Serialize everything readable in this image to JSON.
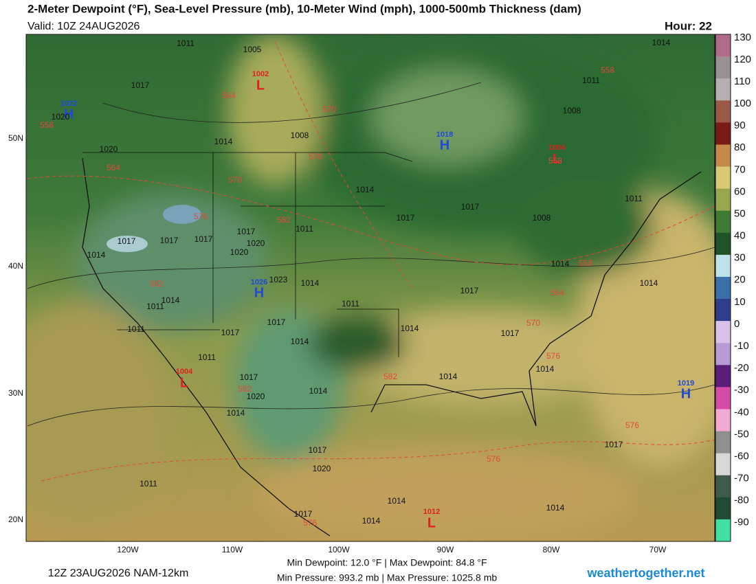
{
  "header": {
    "title": "2-Meter Dewpoint (°F), Sea-Level Pressure (mb), 10-Meter Wind (mph), 1000-500mb Thickness (dam)",
    "valid": "Valid: 10Z 24AUG2026",
    "hour": "Hour: 22"
  },
  "map": {
    "lat_labels": [
      "50N",
      "40N",
      "30N",
      "20N"
    ],
    "lon_labels": [
      "120W",
      "110W",
      "100W",
      "90W",
      "80W",
      "70W"
    ],
    "highs": [
      {
        "label": "H",
        "pressure": "1022"
      },
      {
        "label": "H",
        "pressure": "1018"
      },
      {
        "label": "H",
        "pressure": "1026"
      },
      {
        "label": "H",
        "pressure": "1019"
      }
    ],
    "lows": [
      {
        "label": "L",
        "pressure": "1002"
      },
      {
        "label": "L",
        "pressure": "1004"
      },
      {
        "label": "L",
        "pressure": "1004"
      },
      {
        "label": "L",
        "pressure": "1012"
      }
    ],
    "isobar_labels": [
      "1011",
      "1005",
      "1017",
      "1020",
      "1014",
      "1008",
      "1020",
      "1011",
      "1008",
      "1014",
      "1014",
      "1017",
      "1017",
      "1008",
      "1011",
      "1011",
      "1017",
      "1020",
      "1017",
      "1017",
      "1017",
      "1014",
      "1020",
      "1023",
      "1014",
      "1014",
      "1011",
      "1011",
      "1017",
      "1014",
      "1014",
      "1011",
      "1017",
      "1017",
      "1014",
      "1014",
      "1017",
      "1011",
      "1017",
      "1020",
      "1014",
      "1014",
      "1014",
      "1014",
      "1017",
      "1020",
      "1017",
      "1011",
      "1014",
      "1014",
      "1017",
      "1014"
    ],
    "thickness_labels": [
      "558",
      "564",
      "570",
      "558",
      "564",
      "576",
      "570",
      "576",
      "582",
      "558",
      "558",
      "564",
      "582",
      "570",
      "576",
      "582",
      "582",
      "576",
      "576",
      "576"
    ]
  },
  "colorbar": {
    "ticks": [
      130,
      120,
      110,
      100,
      90,
      80,
      70,
      60,
      50,
      40,
      30,
      20,
      10,
      0,
      -10,
      -20,
      -30,
      -40,
      -50,
      -60,
      -70,
      -80,
      -90
    ],
    "colors": [
      "#b06a8c",
      "#9a8f95",
      "#b8aeb2",
      "#9b5a48",
      "#7a1a14",
      "#c58a4a",
      "#d9c874",
      "#9aa64e",
      "#3f7a34",
      "#1f5428",
      "#bfe1ea",
      "#3b6fa8",
      "#2d3f8a",
      "#d9c2ea",
      "#b79ad6",
      "#5a1e7a",
      "#d64aa8",
      "#f2a9d2",
      "#8f8f8f",
      "#d8d8d8",
      "#3d5a4a",
      "#1f4a34",
      "#3fe0a0"
    ]
  },
  "footer": {
    "run": "12Z 23AUG2026 NAM-12km",
    "dewpoint": "Min Dewpoint:  12.0 °F | Max Dewpoint:  84.8 °F",
    "pressure": "Min Pressure: 993.2 mb | Max Pressure: 1025.8 mb",
    "site": "weathertogether.net"
  }
}
